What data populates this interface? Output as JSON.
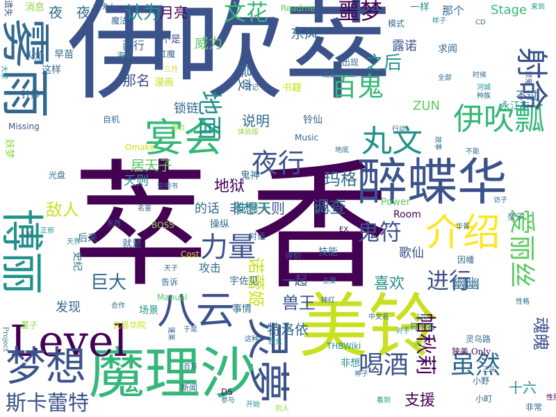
{
  "palette": {
    "deep_purple": "#440154",
    "indigo": "#3b528b",
    "blue": "#31688e",
    "teal": "#21918c",
    "sea_green": "#35b779",
    "green": "#5ec962",
    "lime": "#90d743",
    "yellow": "#c8e020",
    "bright_yellow": "#fde725"
  },
  "words": [
    "伊吹萃",
    "香",
    "萃",
    "灵夢",
    "美铃",
    "魔理沙",
    "醉蝶华",
    "雾雨",
    "博丽",
    "Level",
    "宴会",
    "梦想",
    "八云",
    "介绍",
    "伊吹瓢",
    "丸文",
    "力量",
    "夜行",
    "鬼符",
    "百鬼",
    "地面",
    "射命",
    "喝酒",
    "虽然",
    "斯卡蕾特",
    "爱丽丝",
    "帕秋莉",
    "进行",
    "巨大",
    "文花",
    "噩梦",
    "认为",
    "之后",
    "敌人",
    "地狱",
    "调查",
    "玛格",
    "喜欢",
    "兽王",
    "诺蕾姬",
    "特洛依",
    "支援",
    "歌仙",
    "幽幽",
    "魂魄",
    "十六",
    "灵乌路",
    "非想天则",
    "说明",
    "夜",
    "夜",
    "月亮",
    "东风",
    "威力",
    "那名",
    "锁链",
    "针妙",
    "居天子",
    "天则",
    "维想天",
    "的话",
    "操纵",
    "攻击",
    "一起",
    "宇佐见",
    "发现",
    "史纪",
    "ZUN",
    "Stage",
    "Missing",
    "Power",
    "Room",
    "Music",
    "Manual",
    "Readme",
    "Omake",
    "BOSS",
    "THBWiki",
    "DS",
    "Cost",
    "CD",
    "EX",
    "妖梦",
    "永江衣",
    "不过",
    "西行",
    "那个",
    "一样",
    "遗失",
    "魔法",
    "火焰",
    "消息",
    "不是",
    "红魔",
    "海棠",
    "周五",
    "鬼神",
    "说明书",
    "光盘",
    "天界",
    "就是",
    "对话",
    "评价",
    "技能",
    "众人",
    "华胥",
    "奈子",
    "访子",
    "因幡",
    "新闻",
    "百万",
    "开始",
    "参与",
    "神子",
    "小野",
    "狭美 Only",
    "三头",
    "符卡名",
    "中文名",
    "对手",
    "通过",
    "之力",
    "出现",
    "求闻",
    "时候",
    "河城",
    "种族",
    "邪鬼",
    "露诺",
    "来到",
    "全部",
    "模式",
    "样子",
    "地底",
    "行动",
    "故事",
    "不能",
    "自机",
    "体验版",
    "溶岩",
    "日记",
    "漫画",
    "三月",
    "早苗",
    "这样",
    "异变",
    "书籍",
    "铃仙",
    "大家",
    "东西",
    "场景",
    "于是",
    "事情",
    "这种",
    "妖鬼",
    "非想",
    "看到",
    "别人",
    "名鉴",
    "天子",
    "告诉",
    "主要",
    "妹红",
    "小町",
    "菫子",
    "蓬莱",
    "合作",
    "优昙华院",
    "后来",
    "正邪",
    "人妖",
    "鬼人",
    "Project",
    "性格",
    "非常",
    "性别"
  ]
}
